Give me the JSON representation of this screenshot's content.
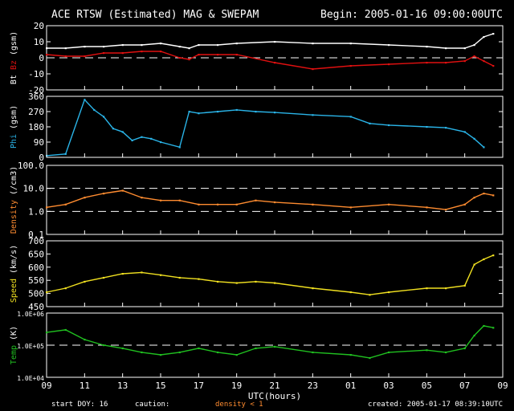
{
  "header": {
    "title": "ACE RTSW (Estimated) MAG & SWEPAM",
    "begin": "Begin: 2005-01-16 09:00:00UTC"
  },
  "footer": {
    "start_doy": "start DOY:  16",
    "caution": "caution:",
    "density_note": "density < 1",
    "created": "created: 2005-01-17 08:39:10UTC"
  },
  "colors": {
    "bt": "#ffffff",
    "bz": "#e01010",
    "phi": "#2ab4e8",
    "density": "#ff8c30",
    "speed": "#f0e020",
    "temp": "#20c020",
    "axis": "#ffffff",
    "caution": "#ff8c30"
  },
  "chart_data": [
    {
      "type": "line",
      "ylabel": "Bt Bz (gsm)",
      "ylabel_parts": [
        {
          "text": "Bt",
          "color": "#ffffff"
        },
        {
          "text": "Bz",
          "color": "#e01010"
        },
        {
          "text": "(gsm)",
          "color": "#ffffff"
        }
      ],
      "ylim": [
        -20,
        20
      ],
      "yticks": [
        "-20",
        "-10",
        "0",
        "10",
        "20"
      ],
      "ytick_values": [
        -20,
        -10,
        0,
        10,
        20
      ],
      "reflines": [
        0
      ],
      "series": [
        {
          "name": "Bt",
          "color": "#ffffff",
          "x": [
            9,
            10,
            11,
            12,
            13,
            14,
            15,
            16,
            16.5,
            17,
            18,
            19,
            21,
            23,
            1,
            3,
            5,
            6,
            7,
            7.5,
            8,
            8.5
          ],
          "values": [
            6,
            6,
            7,
            7,
            8,
            8,
            9,
            7,
            6,
            8,
            8,
            9,
            10,
            9,
            9,
            8,
            7,
            6,
            6,
            8,
            13,
            15
          ]
        },
        {
          "name": "Bz",
          "color": "#e01010",
          "x": [
            9,
            10,
            11,
            12,
            13,
            14,
            15,
            16,
            16.5,
            17,
            18,
            19,
            21,
            23,
            1,
            3,
            5,
            6,
            7,
            7.5,
            8,
            8.5
          ],
          "values": [
            2,
            1,
            1,
            3,
            3,
            4,
            4,
            0,
            -1,
            2,
            2,
            2,
            -3,
            -7,
            -5,
            -4,
            -3,
            -3,
            -2,
            1,
            -2,
            -5
          ]
        }
      ]
    },
    {
      "type": "scatter",
      "ylabel": "Phi (gsm)",
      "ylabel_parts": [
        {
          "text": "Phi",
          "color": "#2ab4e8"
        },
        {
          "text": "(gsm)",
          "color": "#ffffff"
        }
      ],
      "ylim": [
        0,
        360
      ],
      "yticks": [
        "0",
        "90",
        "180",
        "270",
        "360"
      ],
      "ytick_values": [
        0,
        90,
        180,
        270,
        360
      ],
      "series": [
        {
          "name": "Phi",
          "color": "#2ab4e8",
          "x": [
            9,
            10,
            11,
            11.5,
            12,
            12.5,
            13,
            13.5,
            14,
            14.5,
            15,
            16,
            16.5,
            17,
            18,
            19,
            20,
            21,
            23,
            1,
            2,
            3,
            5,
            6,
            7,
            7.5,
            8
          ],
          "values": [
            10,
            20,
            340,
            280,
            240,
            170,
            150,
            100,
            120,
            110,
            90,
            60,
            270,
            260,
            270,
            280,
            270,
            265,
            250,
            240,
            200,
            190,
            180,
            175,
            150,
            110,
            60
          ]
        }
      ]
    },
    {
      "type": "scatter",
      "ylabel": "Density (/cm3)",
      "ylabel_parts": [
        {
          "text": "Density",
          "color": "#ff8c30"
        },
        {
          "text": "(/cm3)",
          "color": "#ffffff"
        }
      ],
      "yscale": "log",
      "ylim": [
        0.1,
        100
      ],
      "yticks": [
        "0.1",
        "1.0",
        "10.0",
        "100.0"
      ],
      "ytick_values": [
        0.1,
        1,
        10,
        100
      ],
      "reflines": [
        1,
        10
      ],
      "series": [
        {
          "name": "Density",
          "color": "#ff8c30",
          "x": [
            9,
            10,
            11,
            12,
            13,
            14,
            15,
            16,
            17,
            18,
            19,
            20,
            21,
            23,
            1,
            3,
            5,
            6,
            7,
            7.5,
            8,
            8.5
          ],
          "values": [
            1.5,
            2,
            4,
            6,
            8,
            4,
            3,
            3,
            2,
            2,
            2,
            3,
            2.5,
            2,
            1.5,
            2,
            1.5,
            1.2,
            2,
            4,
            6,
            5
          ]
        }
      ]
    },
    {
      "type": "scatter",
      "ylabel": "Speed (km/s)",
      "ylabel_parts": [
        {
          "text": "Speed",
          "color": "#f0e020"
        },
        {
          "text": "(km/s)",
          "color": "#ffffff"
        }
      ],
      "ylim": [
        450,
        700
      ],
      "yticks": [
        "450",
        "500",
        "550",
        "600",
        "650",
        "700"
      ],
      "ytick_values": [
        450,
        500,
        550,
        600,
        650,
        700
      ],
      "series": [
        {
          "name": "Speed",
          "color": "#f0e020",
          "x": [
            9,
            10,
            11,
            12,
            13,
            14,
            15,
            16,
            17,
            18,
            19,
            20,
            21,
            23,
            1,
            2,
            3,
            5,
            6,
            7,
            7.5,
            8,
            8.5
          ],
          "values": [
            505,
            520,
            545,
            560,
            575,
            580,
            570,
            560,
            555,
            545,
            540,
            545,
            540,
            520,
            505,
            495,
            505,
            520,
            520,
            530,
            610,
            630,
            645
          ]
        }
      ]
    },
    {
      "type": "scatter",
      "ylabel": "Temp (K)",
      "ylabel_parts": [
        {
          "text": "Temp",
          "color": "#20c020"
        },
        {
          "text": "(K)",
          "color": "#ffffff"
        }
      ],
      "yscale": "log",
      "ylim": [
        10000,
        1000000
      ],
      "yticks": [
        "1.0E+04",
        "1.0E+05",
        "1.0E+06"
      ],
      "ytick_values": [
        10000,
        100000,
        1000000
      ],
      "reflines": [
        100000
      ],
      "series": [
        {
          "name": "Temp",
          "color": "#20c020",
          "x": [
            9,
            10,
            11,
            12,
            13,
            14,
            15,
            16,
            17,
            18,
            19,
            20,
            21,
            23,
            1,
            2,
            3,
            5,
            6,
            7,
            7.5,
            8,
            8.5
          ],
          "values": [
            250000,
            300000,
            150000,
            100000,
            80000,
            60000,
            50000,
            60000,
            80000,
            60000,
            50000,
            80000,
            90000,
            60000,
            50000,
            40000,
            60000,
            70000,
            60000,
            80000,
            200000,
            400000,
            350000
          ]
        }
      ]
    }
  ],
  "xaxis": {
    "label": "UTC(hours)",
    "range_hours": [
      0,
      24
    ],
    "ticks": [
      {
        "label": "09",
        "h": 0
      },
      {
        "label": "11",
        "h": 2
      },
      {
        "label": "13",
        "h": 4
      },
      {
        "label": "15",
        "h": 6
      },
      {
        "label": "17",
        "h": 8
      },
      {
        "label": "19",
        "h": 10
      },
      {
        "label": "21",
        "h": 12
      },
      {
        "label": "23",
        "h": 14
      },
      {
        "label": "01",
        "h": 16
      },
      {
        "label": "03",
        "h": 18
      },
      {
        "label": "05",
        "h": 20
      },
      {
        "label": "07",
        "h": 22
      },
      {
        "label": "09",
        "h": 24
      }
    ]
  }
}
